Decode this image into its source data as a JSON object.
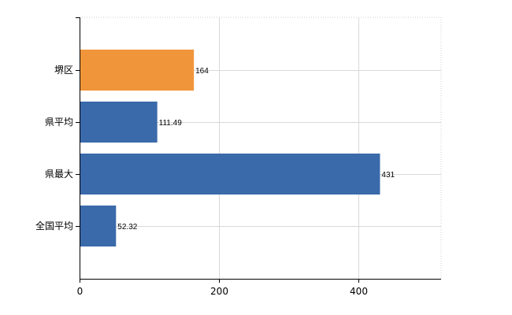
{
  "chart_data": {
    "type": "bar",
    "orientation": "horizontal",
    "categories": [
      "堺区",
      "県平均",
      "県最大",
      "全国平均"
    ],
    "values": [
      164,
      111.49,
      431,
      52.32
    ],
    "value_labels": [
      "164",
      "111.49",
      "431",
      "52.32"
    ],
    "xlim": [
      0,
      516
    ],
    "xticks": [
      0,
      200,
      400
    ],
    "xtick_labels": [
      "0",
      "200",
      "400"
    ],
    "grid": true,
    "bar_colors": [
      "#F0953A",
      "#3A6AAA",
      "#3A6AAA",
      "#3A6AAA"
    ],
    "title": "",
    "xlabel": "",
    "ylabel": ""
  }
}
